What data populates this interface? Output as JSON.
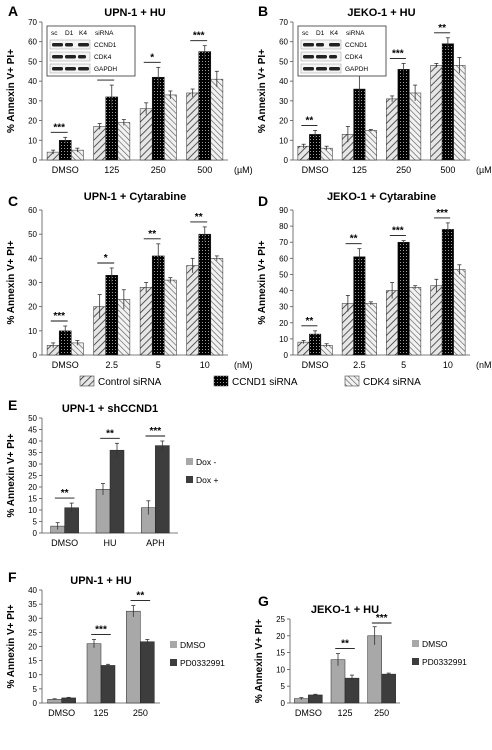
{
  "figure": {
    "legend_sirna": [
      "Control siRNA",
      "CCND1 siRNA",
      "CDK4 siRNA"
    ],
    "western": {
      "header": [
        "sc",
        "D1",
        "K4",
        "siRNA"
      ],
      "rows": [
        "CCND1",
        "CDK4",
        "GAPDH"
      ]
    }
  },
  "chart_data": [
    {
      "panel": "A",
      "type": "bar",
      "title": "UPN-1 + HU",
      "ylabel": "% Annexin V+ PI+",
      "unit": "(µM)",
      "ylim": [
        0,
        70
      ],
      "yticks": [
        0,
        10,
        20,
        30,
        40,
        50,
        60,
        70
      ],
      "categories": [
        "DMSO",
        "125",
        "250",
        "500"
      ],
      "series": [
        {
          "name": "Control siRNA",
          "values": [
            4,
            17,
            26,
            34
          ],
          "errors": [
            1,
            1.5,
            3,
            2
          ]
        },
        {
          "name": "CCND1 siRNA",
          "values": [
            10,
            32,
            42,
            55
          ],
          "errors": [
            1.5,
            6,
            5,
            3
          ]
        },
        {
          "name": "CDK4 siRNA",
          "values": [
            5,
            19,
            33,
            41
          ],
          "errors": [
            1,
            1.5,
            2,
            4
          ]
        }
      ],
      "sig": [
        "***",
        "**",
        "*",
        "***"
      ]
    },
    {
      "panel": "B",
      "type": "bar",
      "title": "JEKO-1 + HU",
      "ylabel": "% Annexin V+ PI+",
      "unit": "(µM)",
      "ylim": [
        0,
        70
      ],
      "yticks": [
        0,
        10,
        20,
        30,
        40,
        50,
        60,
        70
      ],
      "categories": [
        "DMSO",
        "125",
        "250",
        "500"
      ],
      "series": [
        {
          "name": "Control siRNA",
          "values": [
            7,
            13,
            31,
            48
          ],
          "errors": [
            1,
            4,
            1.5,
            1
          ]
        },
        {
          "name": "CCND1 siRNA",
          "values": [
            13,
            36,
            46,
            59
          ],
          "errors": [
            2,
            9,
            3,
            3
          ]
        },
        {
          "name": "CDK4 siRNA",
          "values": [
            6,
            15,
            34,
            48
          ],
          "errors": [
            1,
            0.5,
            4,
            4
          ]
        }
      ],
      "sig": [
        "**",
        "*",
        "***",
        "**"
      ]
    },
    {
      "panel": "C",
      "type": "bar",
      "title": "UPN-1 + Cytarabine",
      "ylabel": "% Annexin V+ PI+",
      "unit": "(nM)",
      "ylim": [
        0,
        60
      ],
      "yticks": [
        0,
        10,
        20,
        30,
        40,
        50,
        60
      ],
      "categories": [
        "DMSO",
        "2.5",
        "5",
        "10"
      ],
      "series": [
        {
          "name": "Control siRNA",
          "values": [
            4,
            20,
            28,
            37
          ],
          "errors": [
            1,
            5,
            2,
            3
          ]
        },
        {
          "name": "CCND1 siRNA",
          "values": [
            10,
            33,
            41,
            50
          ],
          "errors": [
            2,
            3,
            5,
            3
          ]
        },
        {
          "name": "CDK4 siRNA",
          "values": [
            5,
            23,
            31,
            40
          ],
          "errors": [
            1,
            4,
            1,
            1
          ]
        }
      ],
      "sig": [
        "***",
        "*",
        "**",
        "**"
      ]
    },
    {
      "panel": "D",
      "type": "bar",
      "title": "JEKO-1 + Cytarabine",
      "ylabel": "% Annexin V+ PI+",
      "unit": "(nM)",
      "ylim": [
        0,
        90
      ],
      "yticks": [
        0,
        10,
        20,
        30,
        40,
        50,
        60,
        70,
        80,
        90
      ],
      "categories": [
        "DMSO",
        "2.5",
        "5",
        "10"
      ],
      "series": [
        {
          "name": "Control siRNA",
          "values": [
            8,
            32,
            40,
            43
          ],
          "errors": [
            1,
            5,
            5,
            4
          ]
        },
        {
          "name": "CCND1 siRNA",
          "values": [
            13,
            61,
            70,
            78
          ],
          "errors": [
            2,
            5,
            1,
            4
          ]
        },
        {
          "name": "CDK4 siRNA",
          "values": [
            6,
            32,
            42,
            53
          ],
          "errors": [
            1,
            1,
            1,
            3
          ]
        }
      ],
      "sig": [
        "**",
        "**",
        "***",
        "***"
      ]
    },
    {
      "panel": "E",
      "type": "bar",
      "title": "UPN-1 + shCCND1",
      "ylabel": "% Annexin V+ PI+",
      "ylim": [
        0,
        50
      ],
      "yticks": [
        0,
        5,
        10,
        15,
        20,
        25,
        30,
        35,
        40,
        45,
        50
      ],
      "categories": [
        "DMSO",
        "HU",
        "APH"
      ],
      "series": [
        {
          "name": "Dox -",
          "values": [
            3,
            19,
            11
          ],
          "errors": [
            1.5,
            2.5,
            3
          ]
        },
        {
          "name": "Dox +",
          "values": [
            11,
            36,
            38
          ],
          "errors": [
            2,
            3,
            2
          ]
        }
      ],
      "sig": [
        "**",
        "**",
        "***"
      ]
    },
    {
      "panel": "F",
      "type": "bar",
      "title": "UPN-1 + HU",
      "ylabel": "% Annexin V+ PI+",
      "ylim": [
        0,
        40
      ],
      "yticks": [
        0,
        5,
        10,
        15,
        20,
        25,
        30,
        35,
        40
      ],
      "categories": [
        "DMSO",
        "125",
        "250"
      ],
      "series": [
        {
          "name": "DMSO",
          "values": [
            1.3,
            21,
            32.5
          ],
          "errors": [
            0.2,
            1.5,
            2
          ]
        },
        {
          "name": "PD0332991",
          "values": [
            1.8,
            13.3,
            21.7
          ],
          "errors": [
            0.2,
            0.4,
            0.8
          ]
        }
      ],
      "sig": [
        "",
        "***",
        "**"
      ]
    },
    {
      "panel": "G",
      "type": "bar",
      "title": "JEKO-1 + HU",
      "ylabel": "% Annexin V+ PI+",
      "ylim": [
        0,
        25
      ],
      "yticks": [
        0,
        5,
        10,
        15,
        20,
        25
      ],
      "categories": [
        "DMSO",
        "125",
        "250"
      ],
      "series": [
        {
          "name": "DMSO",
          "values": [
            1.3,
            12.9,
            20
          ],
          "errors": [
            0.3,
            1.8,
            2.7
          ]
        },
        {
          "name": "PD0332991",
          "values": [
            2.4,
            7.4,
            8.6
          ],
          "errors": [
            0.2,
            0.9,
            0.3
          ]
        }
      ],
      "sig": [
        "",
        "**",
        "***"
      ]
    }
  ],
  "colors": {
    "control": "#cfcfcf",
    "ccnd1": "#0a0a0a",
    "cdk4": "#d9d9d9",
    "light": "#a8a8a8",
    "dark": "#3d3d3d"
  }
}
